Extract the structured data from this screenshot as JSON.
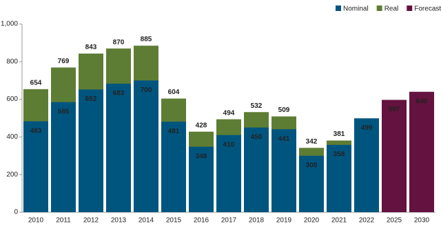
{
  "chart_data": {
    "type": "bar",
    "categories": [
      "2010",
      "2011",
      "2012",
      "2013",
      "2014",
      "2015",
      "2016",
      "2017",
      "2018",
      "2019",
      "2020",
      "2021",
      "2022",
      "2025",
      "2030"
    ],
    "series": [
      {
        "name": "Real",
        "color": "#5e7d34",
        "values": [
          654,
          769,
          843,
          870,
          885,
          604,
          428,
          494,
          532,
          509,
          342,
          381,
          null,
          null,
          null
        ]
      },
      {
        "name": "Nominal",
        "color": "#00557f",
        "values": [
          483,
          585,
          652,
          683,
          700,
          481,
          348,
          410,
          450,
          441,
          300,
          358,
          499,
          null,
          null
        ]
      },
      {
        "name": "Forecast",
        "color": "#64123f",
        "values": [
          null,
          null,
          null,
          null,
          null,
          null,
          null,
          null,
          null,
          null,
          null,
          null,
          null,
          597,
          640
        ]
      }
    ],
    "legend_order": [
      "Nominal",
      "Real",
      "Forecast"
    ],
    "ylim": [
      0,
      1000
    ],
    "yticks": [
      0,
      200,
      400,
      600,
      800,
      {
        "value": 1000,
        "label": "1,000"
      }
    ],
    "grid": false,
    "legend": "top-right"
  }
}
